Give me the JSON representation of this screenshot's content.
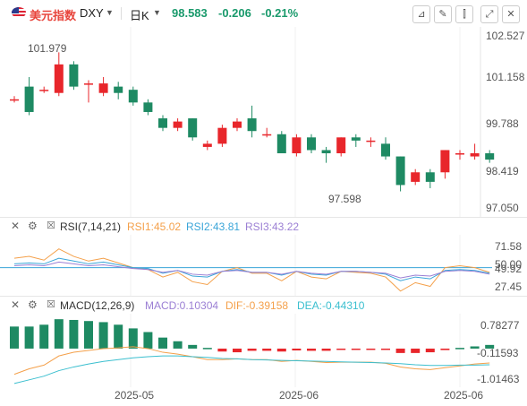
{
  "header": {
    "instrument_name": "美元指数",
    "symbol": "DXY",
    "period": "日K",
    "price": "98.583",
    "change": "-0.206",
    "change_pct": "-0.21%",
    "icons": [
      "line-tool-icon",
      "draw-icon",
      "candle-type-icon",
      "expand-icon",
      "close-icon"
    ]
  },
  "main_chart": {
    "y_ticks": [
      "102.527",
      "101.158",
      "99.788",
      "98.419",
      "97.050"
    ],
    "high_label": "101.979",
    "low_label": "97.598",
    "candles": [
      {
        "o": 100.5,
        "c": 100.5,
        "h": 100.6,
        "l": 100.4
      },
      {
        "o": 100.9,
        "c": 100.1,
        "h": 101.2,
        "l": 100.0
      },
      {
        "o": 100.8,
        "c": 100.8,
        "h": 100.9,
        "l": 100.7
      },
      {
        "o": 100.7,
        "c": 101.6,
        "h": 101.98,
        "l": 100.6
      },
      {
        "o": 101.6,
        "c": 100.9,
        "h": 101.7,
        "l": 100.8
      },
      {
        "o": 101.0,
        "c": 101.0,
        "h": 101.1,
        "l": 100.4
      },
      {
        "o": 100.7,
        "c": 101.0,
        "h": 101.2,
        "l": 100.6
      },
      {
        "o": 100.9,
        "c": 100.7,
        "h": 101.05,
        "l": 100.5
      },
      {
        "o": 100.8,
        "c": 100.4,
        "h": 100.9,
        "l": 100.3
      },
      {
        "o": 100.4,
        "c": 100.1,
        "h": 100.5,
        "l": 100.0
      },
      {
        "o": 99.9,
        "c": 99.6,
        "h": 100.0,
        "l": 99.5
      },
      {
        "o": 99.6,
        "c": 99.8,
        "h": 99.9,
        "l": 99.5
      },
      {
        "o": 99.9,
        "c": 99.3,
        "h": 99.9,
        "l": 99.2
      },
      {
        "o": 99.0,
        "c": 99.1,
        "h": 99.2,
        "l": 98.9
      },
      {
        "o": 99.1,
        "c": 99.6,
        "h": 99.7,
        "l": 99.0
      },
      {
        "o": 99.6,
        "c": 99.8,
        "h": 99.9,
        "l": 99.5
      },
      {
        "o": 99.9,
        "c": 99.5,
        "h": 100.3,
        "l": 99.3
      },
      {
        "o": 99.4,
        "c": 99.4,
        "h": 99.6,
        "l": 99.3
      },
      {
        "o": 99.4,
        "c": 98.8,
        "h": 99.5,
        "l": 98.8
      },
      {
        "o": 98.8,
        "c": 99.3,
        "h": 99.4,
        "l": 98.7
      },
      {
        "o": 99.3,
        "c": 98.9,
        "h": 99.4,
        "l": 98.8
      },
      {
        "o": 98.9,
        "c": 98.8,
        "h": 99.0,
        "l": 98.5
      },
      {
        "o": 98.8,
        "c": 99.3,
        "h": 99.3,
        "l": 98.7
      },
      {
        "o": 99.3,
        "c": 99.2,
        "h": 99.4,
        "l": 99.0
      },
      {
        "o": 99.2,
        "c": 99.2,
        "h": 99.3,
        "l": 99.0
      },
      {
        "o": 99.1,
        "c": 98.7,
        "h": 99.3,
        "l": 98.6
      },
      {
        "o": 98.7,
        "c": 97.8,
        "h": 98.7,
        "l": 97.6
      },
      {
        "o": 97.9,
        "c": 98.2,
        "h": 98.3,
        "l": 97.8
      },
      {
        "o": 98.2,
        "c": 97.9,
        "h": 98.3,
        "l": 97.7
      },
      {
        "o": 98.2,
        "c": 98.9,
        "h": 98.9,
        "l": 98.0
      },
      {
        "o": 98.8,
        "c": 98.8,
        "h": 98.9,
        "l": 98.6
      },
      {
        "o": 98.7,
        "c": 98.8,
        "h": 99.1,
        "l": 98.6
      },
      {
        "o": 98.8,
        "c": 98.6,
        "h": 98.9,
        "l": 98.5
      }
    ]
  },
  "rsi": {
    "title": "RSI(7,14,21)",
    "rsi1": "RSI1:45.02",
    "rsi2": "RSI2:43.81",
    "rsi3": "RSI3:43.22",
    "y_ticks": [
      "71.58",
      "50.00",
      "49.92",
      "27.45"
    ],
    "ref_level": 50,
    "series1": [
      60,
      62,
      58,
      70,
      62,
      57,
      60,
      55,
      50,
      48,
      40,
      45,
      35,
      32,
      46,
      50,
      44,
      44,
      36,
      46,
      40,
      38,
      46,
      45,
      44,
      40,
      25,
      34,
      30,
      50,
      52,
      50,
      45
    ],
    "series2": [
      54,
      55,
      54,
      60,
      57,
      54,
      56,
      53,
      50,
      49,
      44,
      47,
      41,
      40,
      46,
      48,
      45,
      45,
      42,
      46,
      43,
      42,
      46,
      46,
      45,
      43,
      36,
      40,
      38,
      47,
      48,
      47,
      44
    ],
    "series3": [
      52,
      53,
      52,
      56,
      54,
      52,
      53,
      51,
      49,
      48,
      45,
      47,
      43,
      42,
      46,
      47,
      45,
      45,
      43,
      46,
      44,
      43,
      46,
      46,
      45,
      44,
      39,
      42,
      41,
      46,
      47,
      46,
      43
    ]
  },
  "macd": {
    "title": "MACD(12,26,9)",
    "macd_label": "MACD:0.10304",
    "dif_label": "DIF:-0.39158",
    "dea_label": "DEA:-0.44310",
    "y_ticks": [
      "0.78277",
      "-0.11593",
      "-1.01463"
    ],
    "hist": [
      0.6,
      0.6,
      0.65,
      0.8,
      0.78,
      0.75,
      0.72,
      0.65,
      0.55,
      0.45,
      0.3,
      0.2,
      0.1,
      0.02,
      -0.08,
      -0.1,
      -0.06,
      -0.06,
      -0.08,
      -0.05,
      -0.06,
      -0.06,
      -0.03,
      -0.03,
      -0.02,
      -0.03,
      -0.12,
      -0.12,
      -0.1,
      -0.04,
      0.02,
      0.06,
      0.1
    ],
    "dif": [
      -0.7,
      -0.55,
      -0.45,
      -0.2,
      -0.1,
      -0.05,
      0.0,
      0.02,
      0.05,
      0.0,
      -0.1,
      -0.15,
      -0.22,
      -0.3,
      -0.3,
      -0.28,
      -0.3,
      -0.3,
      -0.35,
      -0.32,
      -0.35,
      -0.38,
      -0.37,
      -0.37,
      -0.37,
      -0.4,
      -0.5,
      -0.55,
      -0.57,
      -0.52,
      -0.47,
      -0.42,
      -0.39
    ],
    "dea": [
      -0.95,
      -0.85,
      -0.75,
      -0.6,
      -0.5,
      -0.42,
      -0.35,
      -0.3,
      -0.25,
      -0.22,
      -0.2,
      -0.2,
      -0.22,
      -0.24,
      -0.27,
      -0.28,
      -0.3,
      -0.31,
      -0.32,
      -0.33,
      -0.34,
      -0.35,
      -0.36,
      -0.37,
      -0.38,
      -0.39,
      -0.41,
      -0.44,
      -0.46,
      -0.46,
      -0.45,
      -0.45,
      -0.44
    ]
  },
  "x_axis": [
    "2025-05",
    "2025-06",
    "2025-06"
  ],
  "colors": {
    "up": "#e8262b",
    "down": "#1e8a63",
    "rsi1": "#f4a04a",
    "rsi2": "#3aa5d8",
    "rsi3": "#9b7fd4",
    "dif": "#f4a04a",
    "dea": "#3bbfcf",
    "ref": "#3aa5d8"
  }
}
